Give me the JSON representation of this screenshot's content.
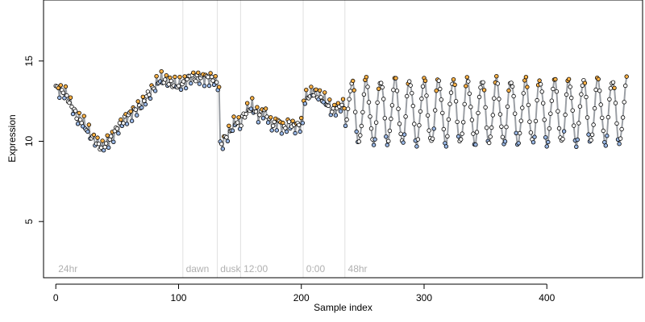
{
  "chart_data": {
    "type": "line",
    "title": "",
    "xlabel": "Sample index",
    "ylabel": "Expression",
    "xlim": [
      -10,
      478
    ],
    "ylim": [
      1.5,
      18.8
    ],
    "xticks": [
      0,
      100,
      200,
      300,
      400
    ],
    "yticks": [
      5,
      10,
      15
    ],
    "grid": false,
    "segments": [
      {
        "label": "24hr",
        "start": 0
      },
      {
        "label": "dawn",
        "start": 104
      },
      {
        "label": "dusk",
        "start": 132
      },
      {
        "label": "12:00",
        "start": 151
      },
      {
        "label": "0:00",
        "start": 202
      },
      {
        "label": "48hr",
        "start": 236
      }
    ],
    "series": [
      {
        "color": "#9e9e9e",
        "values": []
      }
    ],
    "point_colors": {
      "default": "#ffffff",
      "high": "#ffb347",
      "low": "#9ab8e6"
    },
    "smooth_color": "#5b8fd6"
  }
}
